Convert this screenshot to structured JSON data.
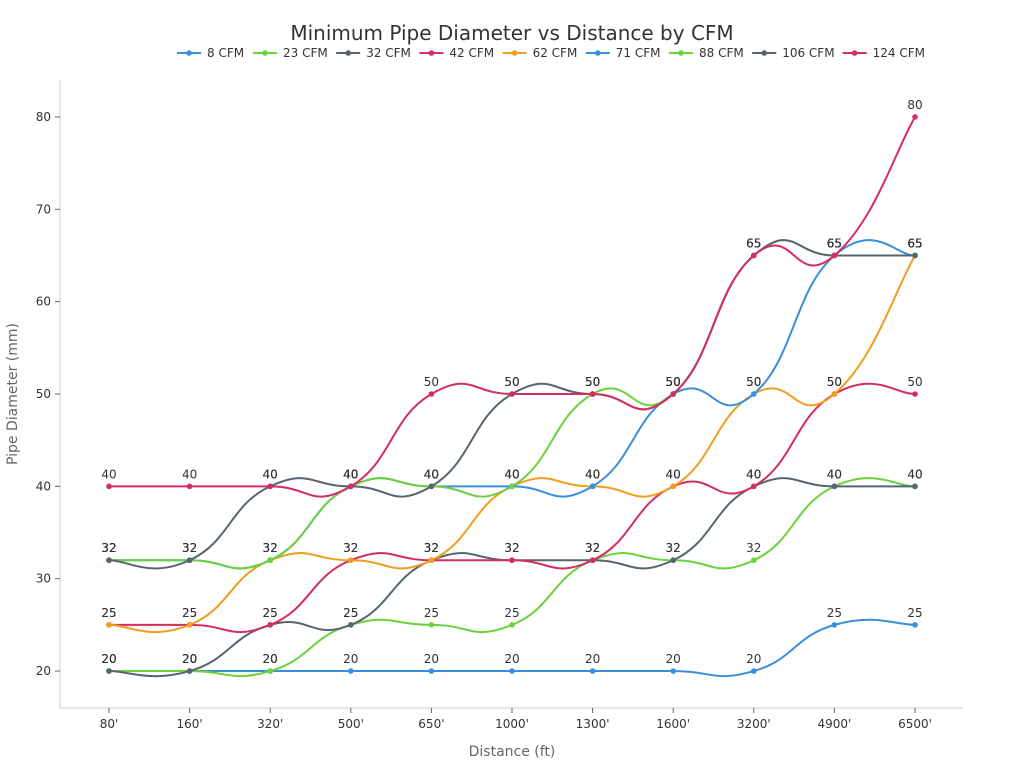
{
  "chart_data": {
    "type": "line",
    "title": "Minimum Pipe Diameter vs Distance by CFM",
    "xlabel": "Distance (ft)",
    "ylabel": "Pipe Diameter (mm)",
    "categories": [
      "80'",
      "160'",
      "320'",
      "500'",
      "650'",
      "1000'",
      "1300'",
      "1600'",
      "3200'",
      "4900'",
      "6500'"
    ],
    "yticks": [
      20,
      30,
      40,
      50,
      60,
      70,
      80
    ],
    "ylim": [
      16,
      84
    ],
    "grid": false,
    "legend_position": "top",
    "smooth": true,
    "series": [
      {
        "name": "8 CFM",
        "color": "#3a8fdb",
        "values": [
          20,
          20,
          20,
          20,
          20,
          20,
          20,
          20,
          20,
          25,
          25
        ]
      },
      {
        "name": "23 CFM",
        "color": "#6bd13c",
        "values": [
          20,
          20,
          20,
          25,
          25,
          25,
          32,
          32,
          32,
          40,
          40
        ]
      },
      {
        "name": "32 CFM",
        "color": "#56656f",
        "values": [
          20,
          20,
          25,
          25,
          32,
          32,
          32,
          32,
          40,
          40,
          40
        ]
      },
      {
        "name": "42 CFM",
        "color": "#d42d63",
        "values": [
          25,
          25,
          25,
          32,
          32,
          32,
          32,
          40,
          40,
          50,
          50
        ]
      },
      {
        "name": "62 CFM",
        "color": "#f19e1f",
        "values": [
          25,
          25,
          32,
          32,
          32,
          40,
          40,
          40,
          50,
          50,
          65
        ]
      },
      {
        "name": "71 CFM",
        "color": "#3a8fdb",
        "values": [
          32,
          32,
          32,
          40,
          40,
          40,
          40,
          50,
          50,
          65,
          65
        ]
      },
      {
        "name": "88 CFM",
        "color": "#6bd13c",
        "values": [
          32,
          32,
          32,
          40,
          40,
          40,
          50,
          50,
          65,
          65,
          65
        ]
      },
      {
        "name": "106 CFM",
        "color": "#56656f",
        "values": [
          32,
          32,
          40,
          40,
          40,
          50,
          50,
          50,
          65,
          65,
          65
        ]
      },
      {
        "name": "124 CFM",
        "color": "#d42d63",
        "values": [
          40,
          40,
          40,
          40,
          50,
          50,
          50,
          50,
          65,
          65,
          80
        ]
      }
    ]
  }
}
